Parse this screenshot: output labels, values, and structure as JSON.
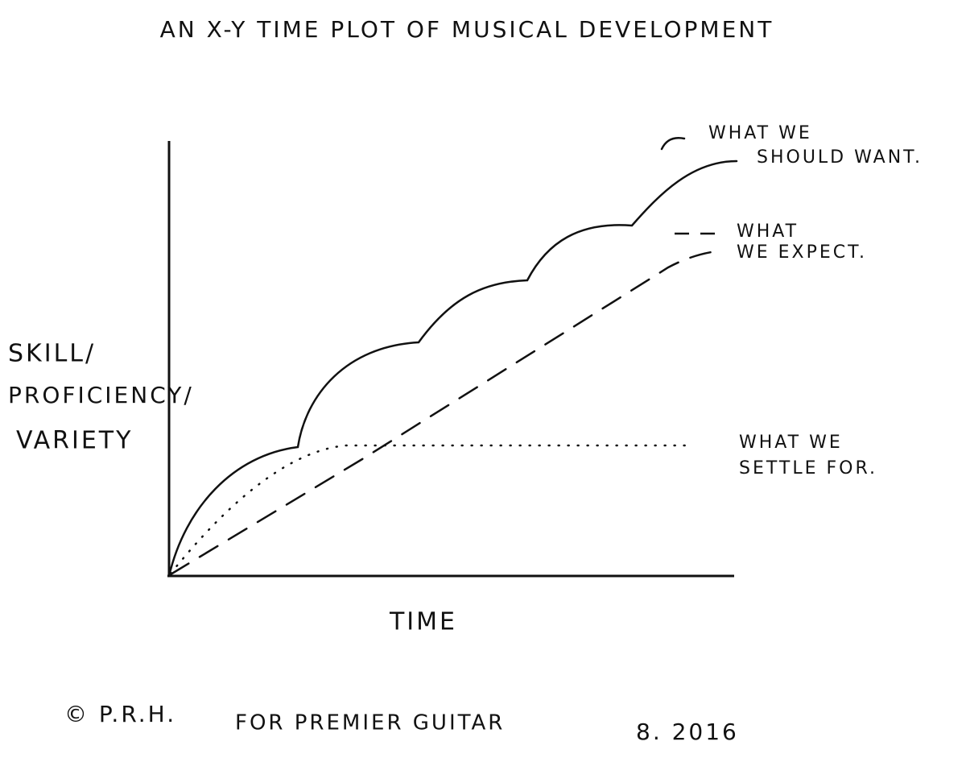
{
  "title": "AN X-Y TIME PLOT OF MUSICAL DEVELOPMENT",
  "y_axis_label": [
    "SKILL/",
    "PROFICIENCY/",
    "VARIETY"
  ],
  "x_axis_label": "TIME",
  "annotations": {
    "should_want": [
      "WHAT WE",
      "SHOULD WANT."
    ],
    "expect": [
      "WHAT",
      "WE EXPECT."
    ],
    "settle": [
      "WHAT WE",
      "SETTLE FOR."
    ]
  },
  "footer": {
    "credit": "© P.R.H.",
    "publication": "FOR PREMIER GUITAR",
    "date": "8. 2016"
  }
}
